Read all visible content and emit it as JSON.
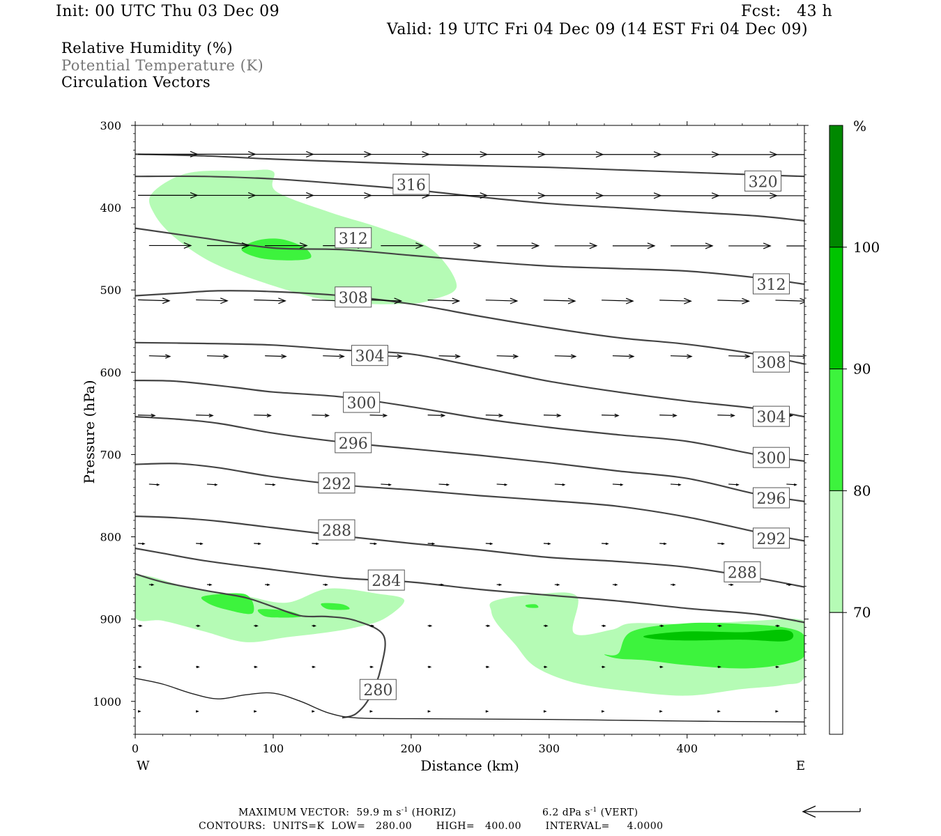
{
  "header": {
    "init": "Init: 00 UTC Thu 03 Dec 09",
    "fcst": "Fcst:   43 h",
    "valid": "Valid: 19 UTC Fri 04 Dec 09 (14 EST Fri 04 Dec 09)"
  },
  "fields": [
    {
      "label": "Relative Humidity (%)",
      "color": "#000000"
    },
    {
      "label": "Potential Temperature (K)",
      "color": "#777777"
    },
    {
      "label": "Circulation Vectors",
      "color": "#000000"
    }
  ],
  "footer": {
    "max_vector_prefix": "MAXIMUM VECTOR:  59.9 m s",
    "max_vector_horiz_suffix": " (HORIZ)",
    "max_vector_vert": "6.2 dPa s",
    "max_vector_vert_suffix": " (VERT)",
    "superscript": "-1",
    "contours": "CONTOURS:  UNITS=K  LOW=   280.00       HIGH=   400.00       INTERVAL=     4.0000"
  },
  "chart_data": {
    "type": "cross-section",
    "xlabel": "Distance (km)",
    "ylabel": "Pressure (hPa)",
    "xlim": [
      0,
      485
    ],
    "ylim": [
      1040,
      300
    ],
    "x_ticks": [
      0,
      100,
      200,
      300,
      400
    ],
    "y_ticks": [
      300,
      400,
      500,
      600,
      700,
      800,
      900,
      1000
    ],
    "x_end_labels": {
      "left": "W",
      "right": "E"
    },
    "colorbar": {
      "unit": "%",
      "levels": [
        70,
        80,
        90,
        100
      ],
      "colors": [
        "#ffffff",
        "#b5fbb5",
        "#3df33d",
        "#00c400",
        "#008800"
      ]
    },
    "rh_regions": [
      {
        "level": "70-80",
        "color": "#b5fbb5",
        "points": [
          [
            12,
            383
          ],
          [
            38,
            358
          ],
          [
            80,
            355
          ],
          [
            100,
            356
          ],
          [
            102,
            380
          ],
          [
            140,
            405
          ],
          [
            180,
            426
          ],
          [
            215,
            451
          ],
          [
            233,
            495
          ],
          [
            215,
            512
          ],
          [
            195,
            517
          ],
          [
            150,
            515
          ],
          [
            110,
            500
          ],
          [
            60,
            470
          ],
          [
            30,
            438
          ],
          [
            14,
            408
          ]
        ]
      },
      {
        "level": "80-90",
        "color": "#3df33d",
        "points": [
          [
            77,
            451
          ],
          [
            88,
            440
          ],
          [
            105,
            438
          ],
          [
            122,
            448
          ],
          [
            127,
            461
          ],
          [
            110,
            464
          ],
          [
            90,
            461
          ]
        ]
      },
      {
        "level": "70-80",
        "color": "#b5fbb5",
        "points": [
          [
            0,
            848
          ],
          [
            40,
            862
          ],
          [
            80,
            872
          ],
          [
            110,
            880
          ],
          [
            140,
            863
          ],
          [
            175,
            869
          ],
          [
            195,
            877
          ],
          [
            180,
            900
          ],
          [
            160,
            910
          ],
          [
            140,
            916
          ],
          [
            110,
            922
          ],
          [
            80,
            928
          ],
          [
            50,
            915
          ],
          [
            20,
            902
          ],
          [
            0,
            898
          ]
        ]
      },
      {
        "level": "80-90",
        "color": "#3df33d",
        "points": [
          [
            50,
            872
          ],
          [
            80,
            870
          ],
          [
            85,
            893
          ],
          [
            65,
            888
          ],
          [
            52,
            880
          ]
        ]
      },
      {
        "level": "80-90",
        "color": "#3df33d",
        "points": [
          [
            90,
            888
          ],
          [
            110,
            890
          ],
          [
            120,
            897
          ],
          [
            100,
            898
          ],
          [
            92,
            895
          ]
        ]
      },
      {
        "level": "80-90",
        "color": "#3df33d",
        "points": [
          [
            135,
            881
          ],
          [
            150,
            882
          ],
          [
            155,
            888
          ],
          [
            140,
            888
          ]
        ]
      },
      {
        "level": "70-80",
        "color": "#b5fbb5",
        "points": [
          [
            260,
            878
          ],
          [
            290,
            870
          ],
          [
            320,
            872
          ],
          [
            318,
            917
          ],
          [
            345,
            913
          ],
          [
            360,
            905
          ],
          [
            400,
            906
          ],
          [
            450,
            902
          ],
          [
            480,
            900
          ],
          [
            485,
            912
          ],
          [
            485,
            970
          ],
          [
            470,
            980
          ],
          [
            440,
            985
          ],
          [
            400,
            993
          ],
          [
            360,
            988
          ],
          [
            320,
            978
          ],
          [
            290,
            958
          ],
          [
            275,
            930
          ],
          [
            262,
            905
          ],
          [
            258,
            890
          ]
        ]
      },
      {
        "level": "80-90",
        "color": "#3df33d",
        "points": [
          [
            340,
            943
          ],
          [
            350,
            942
          ],
          [
            360,
            915
          ],
          [
            400,
            905
          ],
          [
            440,
            906
          ],
          [
            470,
            910
          ],
          [
            485,
            920
          ],
          [
            485,
            945
          ],
          [
            470,
            955
          ],
          [
            440,
            960
          ],
          [
            400,
            956
          ],
          [
            370,
            950
          ],
          [
            350,
            948
          ]
        ]
      },
      {
        "level": "90-100",
        "color": "#00c400",
        "points": [
          [
            370,
            920
          ],
          [
            400,
            915
          ],
          [
            440,
            916
          ],
          [
            470,
            913
          ],
          [
            477,
            920
          ],
          [
            470,
            927
          ],
          [
            440,
            925
          ],
          [
            400,
            926
          ],
          [
            375,
            924
          ]
        ]
      },
      {
        "level": "80-90",
        "color": "#3df33d",
        "points": [
          [
            283,
            883
          ],
          [
            290,
            882
          ],
          [
            292,
            886
          ],
          [
            285,
            886
          ]
        ]
      }
    ],
    "theta_contours": [
      {
        "value": 320,
        "label_at": [
          [
            455,
            368
          ]
        ],
        "points": [
          [
            0,
            335
          ],
          [
            50,
            337
          ],
          [
            100,
            341
          ],
          [
            150,
            344
          ],
          [
            200,
            347
          ],
          [
            250,
            349
          ],
          [
            300,
            351
          ],
          [
            350,
            354
          ],
          [
            400,
            357
          ],
          [
            450,
            360
          ],
          [
            485,
            362
          ]
        ]
      },
      {
        "value": 316,
        "label_at": [
          [
            200,
            372
          ]
        ],
        "points": [
          [
            0,
            362
          ],
          [
            50,
            362
          ],
          [
            100,
            365
          ],
          [
            150,
            371
          ],
          [
            200,
            378
          ],
          [
            250,
            387
          ],
          [
            300,
            395
          ],
          [
            350,
            400
          ],
          [
            400,
            405
          ],
          [
            450,
            410
          ],
          [
            485,
            416
          ]
        ]
      },
      {
        "value": 312,
        "label_at": [
          [
            158,
            437
          ],
          [
            461,
            493
          ]
        ],
        "points": [
          [
            0,
            425
          ],
          [
            50,
            437
          ],
          [
            100,
            449
          ],
          [
            150,
            451
          ],
          [
            200,
            458
          ],
          [
            250,
            465
          ],
          [
            300,
            471
          ],
          [
            350,
            474
          ],
          [
            400,
            477
          ],
          [
            450,
            485
          ],
          [
            485,
            493
          ]
        ]
      },
      {
        "value": 308,
        "label_at": [
          [
            158,
            509
          ],
          [
            461,
            588
          ]
        ],
        "points": [
          [
            0,
            507
          ],
          [
            30,
            504
          ],
          [
            60,
            501
          ],
          [
            100,
            502
          ],
          [
            150,
            507
          ],
          [
            200,
            517
          ],
          [
            250,
            532
          ],
          [
            300,
            546
          ],
          [
            350,
            558
          ],
          [
            400,
            566
          ],
          [
            450,
            578
          ],
          [
            485,
            590
          ]
        ]
      },
      {
        "value": 304,
        "label_at": [
          [
            170,
            580
          ],
          [
            461,
            654
          ]
        ],
        "points": [
          [
            0,
            564
          ],
          [
            50,
            565
          ],
          [
            100,
            567
          ],
          [
            150,
            573
          ],
          [
            200,
            578
          ],
          [
            250,
            594
          ],
          [
            300,
            611
          ],
          [
            350,
            624
          ],
          [
            400,
            635
          ],
          [
            450,
            644
          ],
          [
            485,
            654
          ]
        ]
      },
      {
        "value": 300,
        "label_at": [
          [
            164,
            637
          ],
          [
            461,
            704
          ]
        ],
        "points": [
          [
            0,
            610
          ],
          [
            30,
            611
          ],
          [
            70,
            618
          ],
          [
            100,
            624
          ],
          [
            150,
            630
          ],
          [
            200,
            642
          ],
          [
            250,
            656
          ],
          [
            300,
            667
          ],
          [
            350,
            676
          ],
          [
            400,
            684
          ],
          [
            450,
            700
          ],
          [
            485,
            708
          ]
        ]
      },
      {
        "value": 296,
        "label_at": [
          [
            158,
            686
          ],
          [
            461,
            753
          ]
        ],
        "points": [
          [
            0,
            654
          ],
          [
            30,
            657
          ],
          [
            60,
            662
          ],
          [
            100,
            674
          ],
          [
            150,
            685
          ],
          [
            200,
            693
          ],
          [
            250,
            701
          ],
          [
            300,
            710
          ],
          [
            350,
            720
          ],
          [
            400,
            729
          ],
          [
            450,
            748
          ],
          [
            485,
            757
          ]
        ]
      },
      {
        "value": 292,
        "label_at": [
          [
            146,
            735
          ],
          [
            461,
            802
          ]
        ],
        "points": [
          [
            0,
            712
          ],
          [
            30,
            711
          ],
          [
            60,
            716
          ],
          [
            100,
            727
          ],
          [
            150,
            737
          ],
          [
            200,
            743
          ],
          [
            250,
            750
          ],
          [
            300,
            756
          ],
          [
            350,
            763
          ],
          [
            400,
            776
          ],
          [
            450,
            794
          ],
          [
            485,
            805
          ]
        ]
      },
      {
        "value": 288,
        "label_at": [
          [
            146,
            792
          ],
          [
            440,
            843
          ]
        ],
        "points": [
          [
            0,
            775
          ],
          [
            30,
            777
          ],
          [
            60,
            781
          ],
          [
            100,
            789
          ],
          [
            150,
            799
          ],
          [
            200,
            808
          ],
          [
            250,
            816
          ],
          [
            300,
            825
          ],
          [
            350,
            830
          ],
          [
            400,
            837
          ],
          [
            450,
            850
          ],
          [
            485,
            861
          ]
        ]
      },
      {
        "value": 284,
        "label_at": [
          [
            182,
            853
          ]
        ],
        "points": [
          [
            0,
            814
          ],
          [
            20,
            820
          ],
          [
            50,
            829
          ],
          [
            100,
            840
          ],
          [
            150,
            850
          ],
          [
            200,
            855
          ],
          [
            250,
            864
          ],
          [
            300,
            871
          ],
          [
            350,
            878
          ],
          [
            400,
            887
          ],
          [
            450,
            894
          ],
          [
            485,
            904
          ]
        ]
      },
      {
        "value": 280,
        "label_at": [
          [
            176,
            986
          ]
        ],
        "points": [
          [
            0,
            845
          ],
          [
            20,
            855
          ],
          [
            50,
            865
          ],
          [
            80,
            874
          ],
          [
            100,
            885
          ],
          [
            120,
            896
          ],
          [
            140,
            897
          ],
          [
            160,
            902
          ],
          [
            180,
            920
          ],
          [
            178,
            960
          ],
          [
            170,
            995
          ],
          [
            160,
            1015
          ],
          [
            150,
            1020
          ]
        ]
      },
      {
        "value": null,
        "label_at": [],
        "points": [
          [
            0,
            972
          ],
          [
            20,
            979
          ],
          [
            40,
            990
          ],
          [
            60,
            997
          ],
          [
            80,
            992
          ],
          [
            100,
            990
          ],
          [
            120,
            1000
          ],
          [
            140,
            1014
          ],
          [
            160,
            1020
          ],
          [
            200,
            1021
          ],
          [
            300,
            1022
          ],
          [
            400,
            1024
          ],
          [
            485,
            1025
          ]
        ]
      }
    ],
    "reference_vector": {
      "horiz": "59.9 m s-1",
      "vert": "6.2 dPa s-1"
    }
  }
}
